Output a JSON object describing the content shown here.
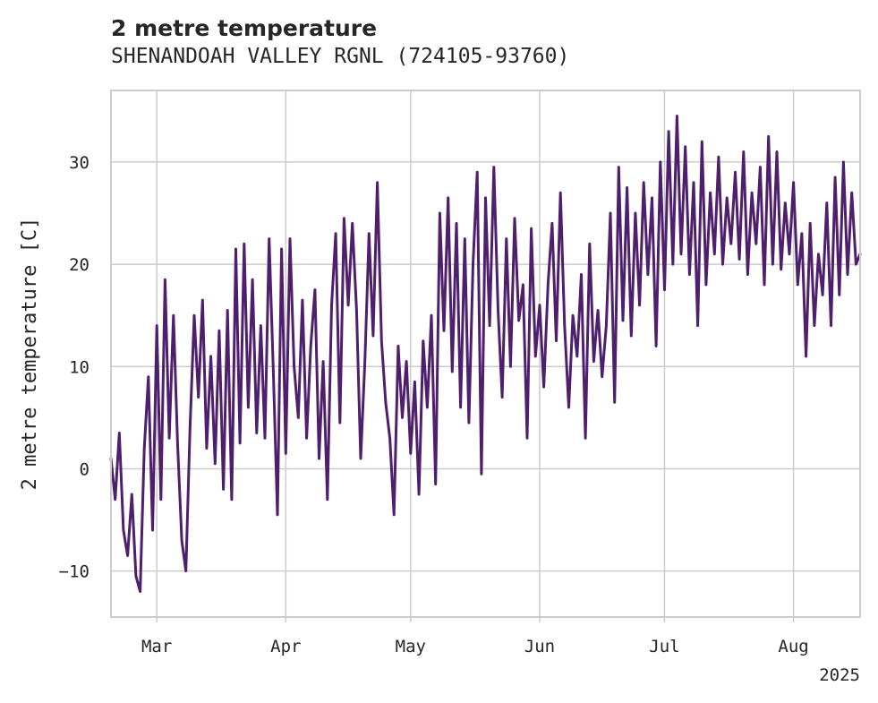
{
  "header": {
    "title": "2 metre temperature",
    "subtitle": "SHENANDOAH VALLEY RGNL (724105-93760)"
  },
  "colors": {
    "line": "#4f1f6e",
    "grid": "#cccccc",
    "axes": "#cccccc",
    "text": "#262626"
  },
  "chart_data": {
    "type": "line",
    "title": "2 metre temperature",
    "subtitle": "SHENANDOAH VALLEY RGNL (724105-93760)",
    "xlabel": "",
    "ylabel": "2 metre temperature [C]",
    "x_axis": {
      "type": "date",
      "range": [
        "2025-02-18",
        "2025-08-17"
      ],
      "ticks": [
        {
          "date": "2025-03-01",
          "label": "Mar"
        },
        {
          "date": "2025-04-01",
          "label": "Apr"
        },
        {
          "date": "2025-05-01",
          "label": "May"
        },
        {
          "date": "2025-06-01",
          "label": "Jun"
        },
        {
          "date": "2025-07-01",
          "label": "Jul"
        },
        {
          "date": "2025-08-01",
          "label": "Aug"
        }
      ],
      "offset_label": "2025"
    },
    "y_axis": {
      "range": [
        -14.5,
        37
      ],
      "ticks": [
        -10,
        0,
        10,
        20,
        30
      ]
    },
    "grid": true,
    "series": [
      {
        "color": "#4f1f6e",
        "points": [
          [
            "2025-02-18",
            1.0
          ],
          [
            "2025-02-19",
            -3.0
          ],
          [
            "2025-02-20",
            3.5
          ],
          [
            "2025-02-21",
            -6.0
          ],
          [
            "2025-02-22",
            -8.5
          ],
          [
            "2025-02-23",
            -2.5
          ],
          [
            "2025-02-24",
            -10.5
          ],
          [
            "2025-02-25",
            -12.0
          ],
          [
            "2025-02-26",
            2.0
          ],
          [
            "2025-02-27",
            9.0
          ],
          [
            "2025-02-28",
            -6.0
          ],
          [
            "2025-03-01",
            14.0
          ],
          [
            "2025-03-02",
            -3.0
          ],
          [
            "2025-03-03",
            18.5
          ],
          [
            "2025-03-04",
            3.0
          ],
          [
            "2025-03-05",
            15.0
          ],
          [
            "2025-03-06",
            2.5
          ],
          [
            "2025-03-07",
            -7.0
          ],
          [
            "2025-03-08",
            -10.0
          ],
          [
            "2025-03-09",
            4.0
          ],
          [
            "2025-03-10",
            15.0
          ],
          [
            "2025-03-11",
            7.0
          ],
          [
            "2025-03-12",
            16.5
          ],
          [
            "2025-03-13",
            2.0
          ],
          [
            "2025-03-14",
            11.0
          ],
          [
            "2025-03-15",
            0.5
          ],
          [
            "2025-03-16",
            13.5
          ],
          [
            "2025-03-17",
            -2.0
          ],
          [
            "2025-03-18",
            15.5
          ],
          [
            "2025-03-19",
            -3.0
          ],
          [
            "2025-03-20",
            21.5
          ],
          [
            "2025-03-21",
            2.5
          ],
          [
            "2025-03-22",
            22.0
          ],
          [
            "2025-03-23",
            6.0
          ],
          [
            "2025-03-24",
            18.5
          ],
          [
            "2025-03-25",
            3.5
          ],
          [
            "2025-03-26",
            14.0
          ],
          [
            "2025-03-27",
            3.0
          ],
          [
            "2025-03-28",
            22.5
          ],
          [
            "2025-03-29",
            9.5
          ],
          [
            "2025-03-30",
            -4.5
          ],
          [
            "2025-03-31",
            21.5
          ],
          [
            "2025-04-01",
            1.5
          ],
          [
            "2025-04-02",
            22.5
          ],
          [
            "2025-04-03",
            10.0
          ],
          [
            "2025-04-04",
            5.0
          ],
          [
            "2025-04-05",
            16.5
          ],
          [
            "2025-04-06",
            3.0
          ],
          [
            "2025-04-07",
            12.0
          ],
          [
            "2025-04-08",
            17.5
          ],
          [
            "2025-04-09",
            1.0
          ],
          [
            "2025-04-10",
            10.5
          ],
          [
            "2025-04-11",
            -3.0
          ],
          [
            "2025-04-12",
            16.0
          ],
          [
            "2025-04-13",
            23.0
          ],
          [
            "2025-04-14",
            4.5
          ],
          [
            "2025-04-15",
            24.5
          ],
          [
            "2025-04-16",
            16.0
          ],
          [
            "2025-04-17",
            24.0
          ],
          [
            "2025-04-18",
            15.5
          ],
          [
            "2025-04-19",
            1.0
          ],
          [
            "2025-04-20",
            10.5
          ],
          [
            "2025-04-21",
            23.0
          ],
          [
            "2025-04-22",
            13.0
          ],
          [
            "2025-04-23",
            28.0
          ],
          [
            "2025-04-24",
            12.5
          ],
          [
            "2025-04-25",
            6.5
          ],
          [
            "2025-04-26",
            3.0
          ],
          [
            "2025-04-27",
            -4.5
          ],
          [
            "2025-04-28",
            12.0
          ],
          [
            "2025-04-29",
            5.0
          ],
          [
            "2025-04-30",
            10.5
          ],
          [
            "2025-05-01",
            1.5
          ],
          [
            "2025-05-02",
            8.5
          ],
          [
            "2025-05-03",
            -2.5
          ],
          [
            "2025-05-04",
            12.5
          ],
          [
            "2025-05-05",
            6.0
          ],
          [
            "2025-05-06",
            15.0
          ],
          [
            "2025-05-07",
            -1.5
          ],
          [
            "2025-05-08",
            25.0
          ],
          [
            "2025-05-09",
            13.5
          ],
          [
            "2025-05-10",
            26.5
          ],
          [
            "2025-05-11",
            9.5
          ],
          [
            "2025-05-12",
            24.0
          ],
          [
            "2025-05-13",
            6.0
          ],
          [
            "2025-05-14",
            22.5
          ],
          [
            "2025-05-15",
            4.5
          ],
          [
            "2025-05-16",
            20.0
          ],
          [
            "2025-05-17",
            29.0
          ],
          [
            "2025-05-18",
            -0.5
          ],
          [
            "2025-05-19",
            26.5
          ],
          [
            "2025-05-20",
            14.0
          ],
          [
            "2025-05-21",
            29.5
          ],
          [
            "2025-05-22",
            15.5
          ],
          [
            "2025-05-23",
            7.0
          ],
          [
            "2025-05-24",
            22.5
          ],
          [
            "2025-05-25",
            10.0
          ],
          [
            "2025-05-26",
            24.5
          ],
          [
            "2025-05-27",
            14.5
          ],
          [
            "2025-05-28",
            18.0
          ],
          [
            "2025-05-29",
            3.0
          ],
          [
            "2025-05-30",
            23.5
          ],
          [
            "2025-05-31",
            11.0
          ],
          [
            "2025-06-01",
            16.0
          ],
          [
            "2025-06-02",
            8.0
          ],
          [
            "2025-06-03",
            18.0
          ],
          [
            "2025-06-04",
            24.0
          ],
          [
            "2025-06-05",
            12.5
          ],
          [
            "2025-06-06",
            27.0
          ],
          [
            "2025-06-07",
            14.0
          ],
          [
            "2025-06-08",
            6.0
          ],
          [
            "2025-06-09",
            15.0
          ],
          [
            "2025-06-10",
            11.0
          ],
          [
            "2025-06-11",
            19.0
          ],
          [
            "2025-06-12",
            3.0
          ],
          [
            "2025-06-13",
            22.0
          ],
          [
            "2025-06-14",
            10.5
          ],
          [
            "2025-06-15",
            15.5
          ],
          [
            "2025-06-16",
            9.0
          ],
          [
            "2025-06-17",
            14.0
          ],
          [
            "2025-06-18",
            25.0
          ],
          [
            "2025-06-19",
            6.5
          ],
          [
            "2025-06-20",
            29.5
          ],
          [
            "2025-06-21",
            14.5
          ],
          [
            "2025-06-22",
            27.5
          ],
          [
            "2025-06-23",
            13.0
          ],
          [
            "2025-06-24",
            25.0
          ],
          [
            "2025-06-25",
            16.0
          ],
          [
            "2025-06-26",
            28.0
          ],
          [
            "2025-06-27",
            19.0
          ],
          [
            "2025-06-28",
            26.5
          ],
          [
            "2025-06-29",
            12.0
          ],
          [
            "2025-06-30",
            30.0
          ],
          [
            "2025-07-01",
            17.5
          ],
          [
            "2025-07-02",
            33.0
          ],
          [
            "2025-07-03",
            20.0
          ],
          [
            "2025-07-04",
            34.5
          ],
          [
            "2025-07-05",
            21.0
          ],
          [
            "2025-07-06",
            31.5
          ],
          [
            "2025-07-07",
            19.0
          ],
          [
            "2025-07-08",
            28.0
          ],
          [
            "2025-07-09",
            14.0
          ],
          [
            "2025-07-10",
            32.0
          ],
          [
            "2025-07-11",
            18.0
          ],
          [
            "2025-07-12",
            27.0
          ],
          [
            "2025-07-13",
            21.0
          ],
          [
            "2025-07-14",
            30.5
          ],
          [
            "2025-07-15",
            20.0
          ],
          [
            "2025-07-16",
            26.5
          ],
          [
            "2025-07-17",
            22.0
          ],
          [
            "2025-07-18",
            29.0
          ],
          [
            "2025-07-19",
            20.5
          ],
          [
            "2025-07-20",
            31.0
          ],
          [
            "2025-07-21",
            19.0
          ],
          [
            "2025-07-22",
            27.0
          ],
          [
            "2025-07-23",
            22.0
          ],
          [
            "2025-07-24",
            29.5
          ],
          [
            "2025-07-25",
            18.0
          ],
          [
            "2025-07-26",
            32.5
          ],
          [
            "2025-07-27",
            20.0
          ],
          [
            "2025-07-28",
            31.0
          ],
          [
            "2025-07-29",
            19.5
          ],
          [
            "2025-07-30",
            26.0
          ],
          [
            "2025-07-31",
            21.0
          ],
          [
            "2025-08-01",
            28.0
          ],
          [
            "2025-08-02",
            18.0
          ],
          [
            "2025-08-03",
            23.0
          ],
          [
            "2025-08-04",
            11.0
          ],
          [
            "2025-08-05",
            24.0
          ],
          [
            "2025-08-06",
            14.0
          ],
          [
            "2025-08-07",
            21.0
          ],
          [
            "2025-08-08",
            17.0
          ],
          [
            "2025-08-09",
            26.0
          ],
          [
            "2025-08-10",
            14.0
          ],
          [
            "2025-08-11",
            28.5
          ],
          [
            "2025-08-12",
            17.0
          ],
          [
            "2025-08-13",
            30.0
          ],
          [
            "2025-08-14",
            19.0
          ],
          [
            "2025-08-15",
            27.0
          ],
          [
            "2025-08-16",
            20.0
          ],
          [
            "2025-08-17",
            21.0
          ]
        ]
      }
    ]
  }
}
